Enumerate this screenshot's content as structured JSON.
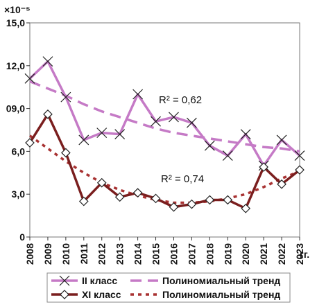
{
  "chart_data": {
    "type": "line",
    "y_scale_label": "×10⁻⁵",
    "x_unit": "гг.",
    "x": [
      "2008",
      "2009",
      "2010",
      "2011",
      "2012",
      "2013",
      "2014",
      "2015",
      "2016",
      "2017",
      "2018",
      "2019",
      "2020",
      "2021",
      "2022",
      "2023"
    ],
    "ylim": [
      0,
      15
    ],
    "yticks": [
      "0",
      "3,0",
      "6,0",
      "09,0",
      "12,0",
      "15,0"
    ],
    "grid": false,
    "legend_position": "bottom",
    "series": [
      {
        "name": "II класс",
        "marker": "x",
        "color": "#c57ac6",
        "values": [
          11.1,
          12.3,
          9.8,
          6.8,
          7.3,
          7.2,
          10.0,
          8.1,
          8.4,
          8.0,
          6.4,
          5.7,
          7.2,
          5.0,
          6.8,
          5.7
        ]
      },
      {
        "name": "XI класс",
        "marker": "diamond",
        "color": "#7a1e1e",
        "values": [
          6.6,
          8.6,
          5.9,
          2.5,
          3.8,
          2.8,
          3.1,
          2.7,
          2.1,
          2.3,
          2.6,
          2.6,
          2.0,
          4.9,
          3.7,
          4.7
        ]
      }
    ],
    "trends": [
      {
        "name": "Полиномиальный тренд",
        "color": "#c57ac6",
        "style": "dashed",
        "values": [
          10.9,
          10.4,
          9.9,
          9.3,
          8.8,
          8.4,
          8.0,
          7.6,
          7.3,
          7.1,
          6.9,
          6.7,
          6.5,
          6.3,
          6.2,
          6.0
        ],
        "r2": "R² = 0,62"
      },
      {
        "name": "Полиномиальный тренд",
        "color": "#a83232",
        "style": "dotted",
        "values": [
          7.1,
          6.2,
          5.3,
          4.5,
          3.8,
          3.3,
          2.9,
          2.6,
          2.4,
          2.4,
          2.5,
          2.7,
          3.0,
          3.5,
          4.1,
          4.6
        ],
        "r2": "R² = 0,74"
      }
    ],
    "annotations": [
      "R² = 0,62",
      "R² = 0,74"
    ]
  }
}
